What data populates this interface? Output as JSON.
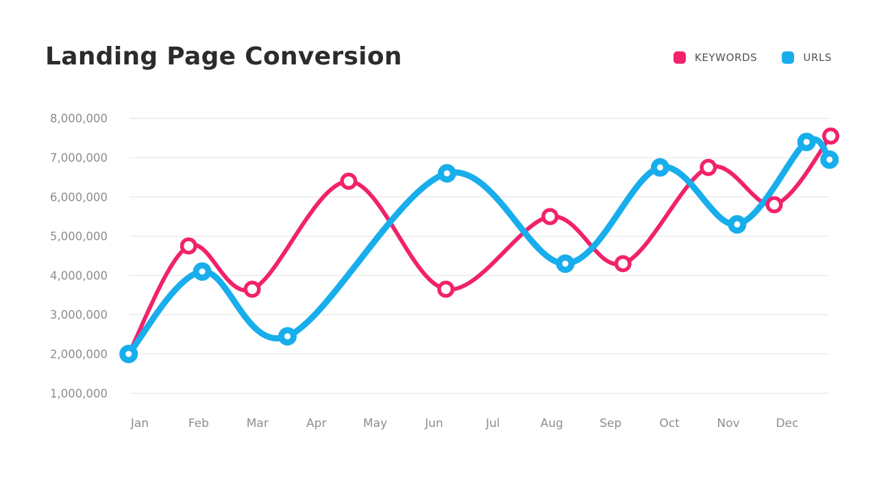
{
  "chart": {
    "title": "Landing Page Conversion"
  },
  "legend": [
    {
      "label": "KEYWORDS",
      "color": "#F1226B"
    },
    {
      "label": "URLS",
      "color": "#18AEEC"
    }
  ],
  "colors": {
    "background": "#ffffff",
    "grid": "#e8e8e8",
    "title_text": "#2c2c2c",
    "axis_label_text": "#8d8d8d",
    "legend_text": "#4f5156",
    "keywords_pink": "#F1226B",
    "urls_blue": "#18AEEC",
    "point_center": "#ffffff"
  },
  "chart_data": {
    "type": "line",
    "title": "Landing Page Conversion",
    "categories": [
      "Jan",
      "Feb",
      "Mar",
      "Apr",
      "May",
      "Jun",
      "Jul",
      "Aug",
      "Sep",
      "Oct",
      "Nov",
      "Dec"
    ],
    "y_axis": {
      "tick_labels": [
        "8,000,000",
        "7,000,000",
        "6,000,000",
        "5,000,000",
        "4,000,000",
        "3,000,000",
        "2,000,000",
        "1,000,000"
      ],
      "tick_values": [
        8000000,
        7000000,
        6000000,
        5000000,
        4000000,
        3000000,
        2000000,
        1000000
      ],
      "range": [
        1000000,
        8000000
      ]
    },
    "grid": "horizontal-only",
    "legend_position": "top-right",
    "curve": "smooth",
    "series": [
      {
        "name": "KEYWORDS",
        "color": "#F1226B",
        "line_width": 6,
        "points": [
          {
            "month_index": -0.19,
            "value": 2000000
          },
          {
            "month_index": 0.83,
            "value": 4750000
          },
          {
            "month_index": 1.91,
            "value": 3650000
          },
          {
            "month_index": 3.55,
            "value": 6400000
          },
          {
            "month_index": 5.2,
            "value": 3650000
          },
          {
            "month_index": 6.97,
            "value": 5500000
          },
          {
            "month_index": 8.21,
            "value": 4300000
          },
          {
            "month_index": 9.66,
            "value": 6750000
          },
          {
            "month_index": 10.78,
            "value": 5800000
          },
          {
            "month_index": 11.74,
            "value": 7550000
          }
        ]
      },
      {
        "name": "URLS",
        "color": "#18AEEC",
        "line_width": 9,
        "points": [
          {
            "month_index": -0.19,
            "value": 2000000
          },
          {
            "month_index": 1.06,
            "value": 4100000
          },
          {
            "month_index": 2.51,
            "value": 2450000
          },
          {
            "month_index": 5.22,
            "value": 6600000
          },
          {
            "month_index": 7.23,
            "value": 4300000
          },
          {
            "month_index": 8.84,
            "value": 6750000
          },
          {
            "month_index": 10.15,
            "value": 5300000
          },
          {
            "month_index": 11.33,
            "value": 7400000
          },
          {
            "month_index": 11.72,
            "value": 6950000
          }
        ]
      }
    ]
  }
}
